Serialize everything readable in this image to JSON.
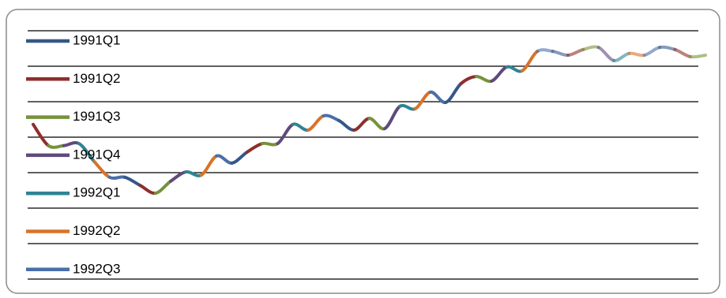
{
  "chart_data": {
    "type": "line",
    "legend": [
      {
        "name": "1991Q1",
        "color": "#35578a"
      },
      {
        "name": "1991Q2",
        "color": "#8e2f2c"
      },
      {
        "name": "1991Q3",
        "color": "#76923c"
      },
      {
        "name": "1991Q4",
        "color": "#5f4a7b"
      },
      {
        "name": "1992Q1",
        "color": "#2f8494"
      },
      {
        "name": "1992Q2",
        "color": "#d8732a"
      },
      {
        "name": "1992Q3",
        "color": "#4a6fa8"
      }
    ],
    "values": [
      4.36,
      3.76,
      3.76,
      3.82,
      3.31,
      2.87,
      2.87,
      2.64,
      2.42,
      2.76,
      3.02,
      2.93,
      3.47,
      3.27,
      3.58,
      3.82,
      3.82,
      4.36,
      4.2,
      4.6,
      4.47,
      4.2,
      4.53,
      4.24,
      4.87,
      4.8,
      5.27,
      4.98,
      5.51,
      5.71,
      5.58,
      5.98,
      5.87,
      6.42,
      6.42,
      6.31,
      6.47,
      6.53,
      6.16,
      6.36,
      6.31,
      6.53,
      6.47,
      6.27,
      6.31
    ],
    "ylim": [
      0,
      7
    ],
    "yticks": [
      0,
      1,
      2,
      3,
      4,
      5,
      6,
      7
    ],
    "grid": true
  }
}
